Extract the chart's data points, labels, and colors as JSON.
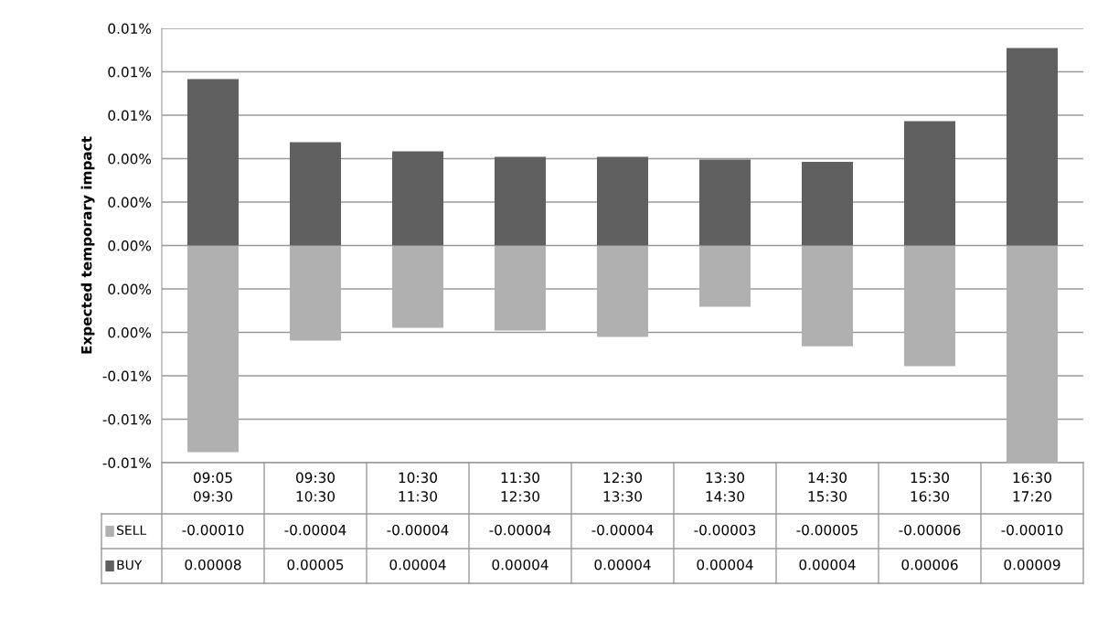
{
  "chart_data": {
    "type": "bar",
    "stacked": true,
    "ylabel": "Expected temporary impact",
    "categories": [
      "09:05\n09:30",
      "09:30\n10:30",
      "10:30\n11:30",
      "11:30\n12:30",
      "12:30\n13:30",
      "13:30\n14:30",
      "14:30\n15:30",
      "15:30\n16:30",
      "16:30\n17:20"
    ],
    "series": [
      {
        "name": "SELL",
        "color": "#b0b0b0",
        "values": [
          -9.52e-05,
          -4.38e-05,
          -3.79e-05,
          -3.92e-05,
          -4.21e-05,
          -2.82e-05,
          -4.64e-05,
          -5.56e-05,
          -0.0001
        ],
        "value_labels": [
          "-0.00010",
          "-0.00004",
          "-0.00004",
          "-0.00004",
          "-0.00004",
          "-0.00003",
          "-0.00005",
          "-0.00006",
          "-0.00010"
        ]
      },
      {
        "name": "BUY",
        "color": "#606060",
        "values": [
          7.66e-05,
          4.76e-05,
          4.34e-05,
          4.08e-05,
          4.08e-05,
          3.96e-05,
          3.85e-05,
          5.73e-05,
          9.09e-05
        ],
        "value_labels": [
          "0.00008",
          "0.00005",
          "0.00004",
          "0.00004",
          "0.00004",
          "0.00004",
          "0.00004",
          "0.00006",
          "0.00009"
        ]
      }
    ],
    "ylim": [
      -0.0001,
      0.0001
    ],
    "yticks": [
      {
        "value": 0.0001,
        "label": "0.01%"
      },
      {
        "value": 8e-05,
        "label": "0.01%"
      },
      {
        "value": 6e-05,
        "label": "0.01%"
      },
      {
        "value": 4e-05,
        "label": "0.00%"
      },
      {
        "value": 2e-05,
        "label": "0.00%"
      },
      {
        "value": 0,
        "label": "0.00%"
      },
      {
        "value": -2e-05,
        "label": "0.00%"
      },
      {
        "value": -4e-05,
        "label": "0.00%"
      },
      {
        "value": -6e-05,
        "label": "-0.01%"
      },
      {
        "value": -8e-05,
        "label": "-0.01%"
      },
      {
        "value": -0.0001,
        "label": "-0.01%"
      }
    ],
    "grid": "y",
    "legend": "bottom left"
  }
}
